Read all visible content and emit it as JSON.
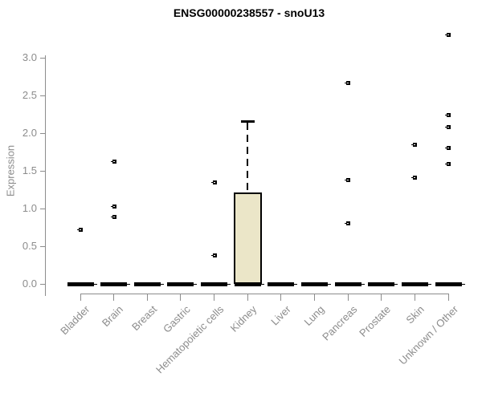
{
  "chart_data": {
    "type": "boxplot",
    "title": "ENSG00000238557 - snoU13",
    "xlabel": "",
    "ylabel": "Expression",
    "ylim": [
      0,
      3.3
    ],
    "yticks": [
      "0.0",
      "0.5",
      "1.0",
      "1.5",
      "2.0",
      "2.5",
      "3.0"
    ],
    "grid": false,
    "legend": "none",
    "categories": [
      "Bladder",
      "Brain",
      "Breast",
      "Gastric",
      "Hematopoietic cells",
      "Kidney",
      "Liver",
      "Lung",
      "Pancreas",
      "Prostate",
      "Skin",
      "Unknown / Other"
    ],
    "boxes": [
      {
        "category": "Bladder",
        "q1": 0,
        "median": 0,
        "q3": 0,
        "whisker_low": 0,
        "whisker_high": 0,
        "points": [
          0.72
        ]
      },
      {
        "category": "Brain",
        "q1": 0,
        "median": 0,
        "q3": 0,
        "whisker_low": 0,
        "whisker_high": 0,
        "points": [
          1.63,
          1.03,
          0.89
        ]
      },
      {
        "category": "Breast",
        "q1": 0,
        "median": 0,
        "q3": 0,
        "whisker_low": 0,
        "whisker_high": 0,
        "points": []
      },
      {
        "category": "Gastric",
        "q1": 0,
        "median": 0,
        "q3": 0,
        "whisker_low": 0,
        "whisker_high": 0,
        "points": []
      },
      {
        "category": "Hematopoietic cells",
        "q1": 0,
        "median": 0,
        "q3": 0,
        "whisker_low": 0,
        "whisker_high": 0,
        "points": [
          1.35,
          0.38
        ]
      },
      {
        "category": "Kidney",
        "q1": 0,
        "median": 0,
        "q3": 1.21,
        "whisker_low": 0,
        "whisker_high": 2.15,
        "points": []
      },
      {
        "category": "Liver",
        "q1": 0,
        "median": 0,
        "q3": 0,
        "whisker_low": 0,
        "whisker_high": 0,
        "points": []
      },
      {
        "category": "Lung",
        "q1": 0,
        "median": 0,
        "q3": 0,
        "whisker_low": 0,
        "whisker_high": 0,
        "points": []
      },
      {
        "category": "Pancreas",
        "q1": 0,
        "median": 0,
        "q3": 0,
        "whisker_low": 0,
        "whisker_high": 0,
        "points": [
          2.67,
          1.38,
          0.81
        ]
      },
      {
        "category": "Prostate",
        "q1": 0,
        "median": 0,
        "q3": 0,
        "whisker_low": 0,
        "whisker_high": 0,
        "points": []
      },
      {
        "category": "Skin",
        "q1": 0,
        "median": 0,
        "q3": 0,
        "whisker_low": 0,
        "whisker_high": 0,
        "points": [
          1.85,
          1.41
        ]
      },
      {
        "category": "Unknown / Other",
        "q1": 0,
        "median": 0,
        "q3": 0,
        "whisker_low": 0,
        "whisker_high": 0,
        "points": [
          3.31,
          2.25,
          2.09,
          1.81,
          1.6
        ]
      }
    ],
    "colors": {
      "box_fill": "#ebe6c8",
      "box_border": "#000000",
      "marker": "#000000",
      "axis": "#8c8c8c",
      "tick_text": "#8c8c8c",
      "title_text": "#000000",
      "background": "#ffffff"
    }
  }
}
